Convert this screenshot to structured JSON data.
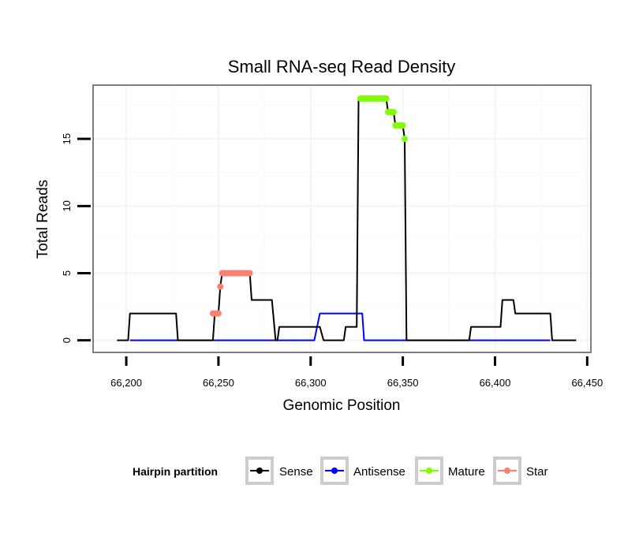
{
  "chart_data": {
    "type": "line",
    "title": "Small RNA-seq Read Density",
    "xlabel": "Genomic Position",
    "ylabel": "Total Reads",
    "xlim": [
      66182,
      66452
    ],
    "ylim": [
      -0.9,
      19
    ],
    "x_ticks": [
      66200,
      66250,
      66300,
      66350,
      66400,
      66450
    ],
    "x_tick_labels": [
      "66,200",
      "66,250",
      "66,300",
      "66,350",
      "66,400",
      "66,450"
    ],
    "y_ticks": [
      0,
      5,
      10,
      15
    ],
    "y_tick_labels": [
      "0",
      "5",
      "10",
      "15"
    ],
    "grid": true,
    "legend": {
      "title": "Hairpin partition",
      "position": "bottom",
      "entries": [
        {
          "label": "Sense",
          "color": "#000000"
        },
        {
          "label": "Antisense",
          "color": "#0000ff"
        },
        {
          "label": "Mature",
          "color": "#7fff00"
        },
        {
          "label": "Star",
          "color": "#fa8072"
        }
      ]
    },
    "series": [
      {
        "name": "Sense",
        "color": "#000000",
        "x": [
          66195,
          66201,
          66202,
          66227,
          66228,
          66247,
          66248,
          66249,
          66250,
          66251,
          66252,
          66253,
          66266,
          66267,
          66268,
          66278,
          66279,
          66281,
          66282,
          66283,
          66303,
          66304,
          66305,
          66307,
          66318,
          66319,
          66325,
          66326,
          66327,
          66341,
          66342,
          66345,
          66346,
          66350,
          66351,
          66352,
          66386,
          66387,
          66403,
          66404,
          66410,
          66411,
          66412,
          66430,
          66431,
          66444
        ],
        "y": [
          0,
          0,
          2,
          2,
          0,
          0,
          2,
          2,
          2,
          4,
          5,
          5,
          5,
          5,
          3,
          3,
          3,
          0,
          0,
          1,
          1,
          1,
          1,
          0,
          0,
          1,
          1,
          18,
          18,
          18,
          17,
          17,
          16,
          16,
          15,
          0,
          0,
          1,
          1,
          3,
          3,
          2,
          2,
          2,
          0,
          0
        ]
      },
      {
        "name": "Antisense",
        "color": "#0000ff",
        "x": [
          66202,
          66302,
          66305,
          66328,
          66329,
          66430
        ],
        "y": [
          0,
          0,
          2,
          2,
          0,
          0
        ]
      },
      {
        "name": "Mature",
        "color": "#7fff00",
        "x": [
          66327,
          66328,
          66329,
          66330,
          66331,
          66332,
          66333,
          66334,
          66335,
          66336,
          66337,
          66338,
          66339,
          66340,
          66341,
          66342,
          66343,
          66344,
          66345,
          66346,
          66347,
          66348,
          66349,
          66350,
          66351
        ],
        "y": [
          18,
          18,
          18,
          18,
          18,
          18,
          18,
          18,
          18,
          18,
          18,
          18,
          18,
          18,
          18,
          17,
          17,
          17,
          17,
          16,
          16,
          16,
          16,
          16,
          15
        ]
      },
      {
        "name": "Star",
        "color": "#fa8072",
        "x": [
          66247,
          66248,
          66249,
          66250,
          66251,
          66252,
          66253,
          66254,
          66255,
          66256,
          66257,
          66258,
          66259,
          66260,
          66261,
          66262,
          66263,
          66264,
          66265,
          66266,
          66267
        ],
        "y": [
          2,
          2,
          2,
          2,
          4,
          5,
          5,
          5,
          5,
          5,
          5,
          5,
          5,
          5,
          5,
          5,
          5,
          5,
          5,
          5,
          5
        ]
      }
    ]
  }
}
